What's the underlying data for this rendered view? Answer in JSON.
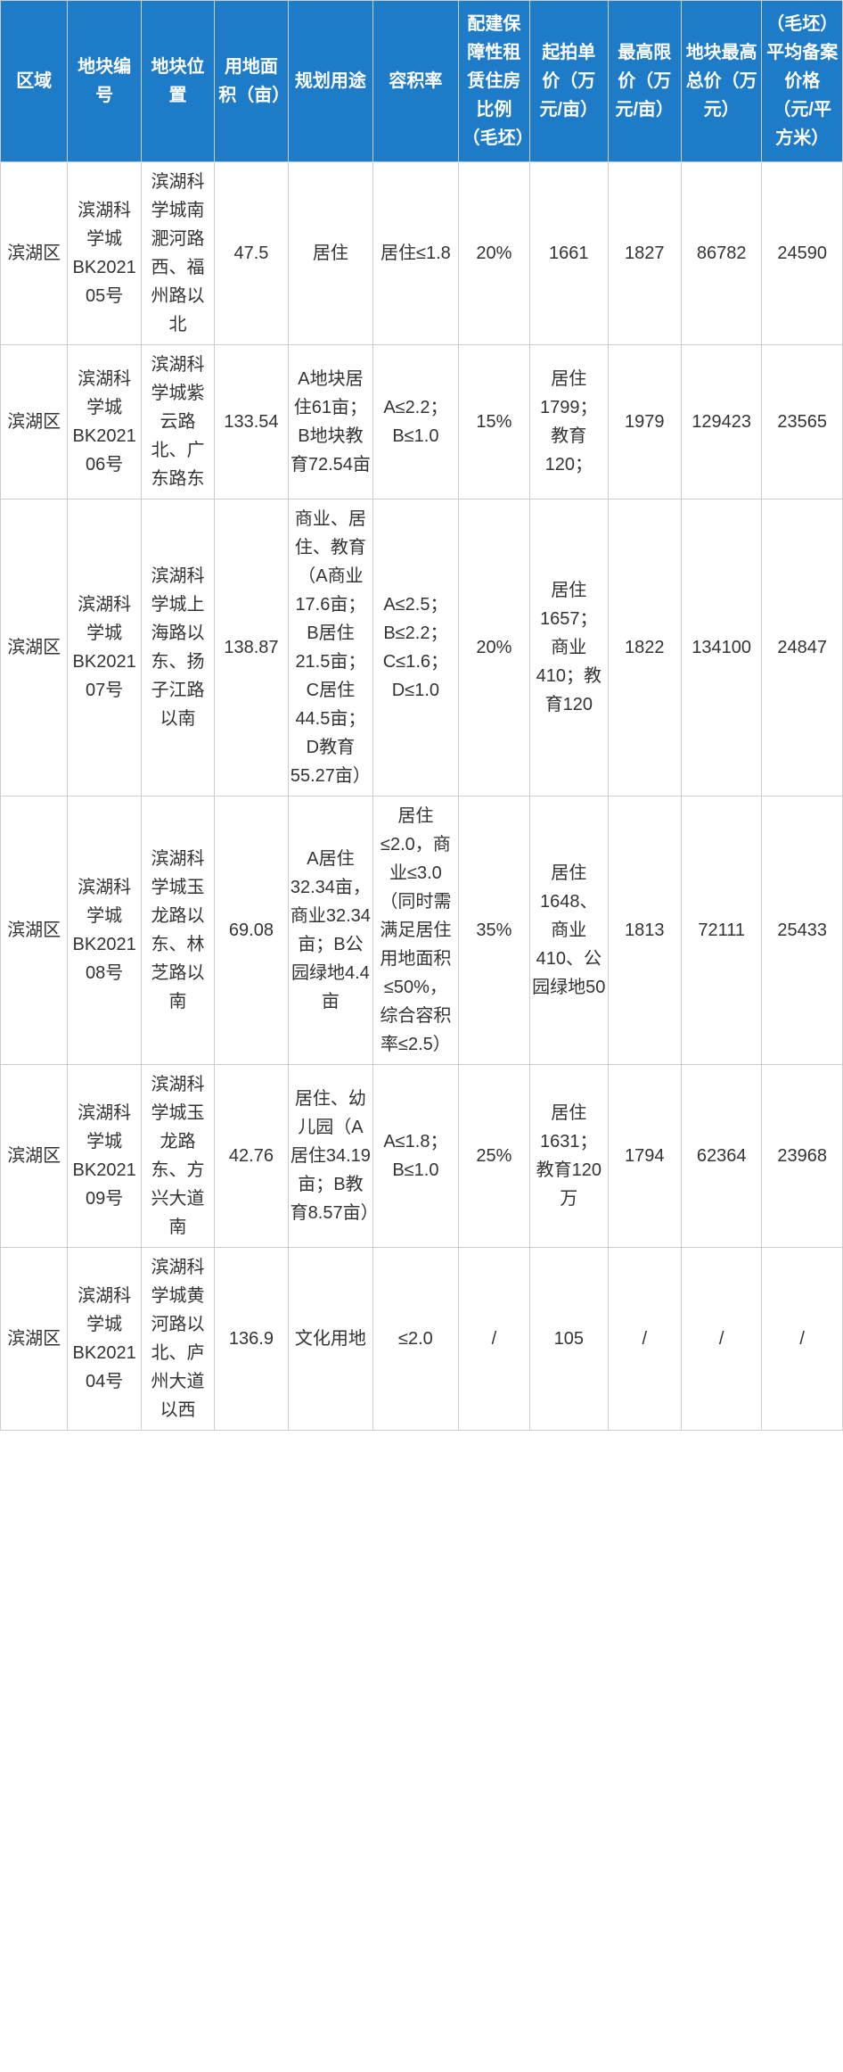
{
  "table": {
    "header_bg": "#1e7bc8",
    "header_fg": "#ffffff",
    "border_color": "#cccccc",
    "cell_bg": "#ffffff",
    "cell_fg": "#333333",
    "font_size_header": 20,
    "font_size_cell": 20,
    "columns": [
      "区域",
      "地块编号",
      "地块位置",
      "用地面积（亩）",
      "规划用途",
      "容积率",
      "配建保障性租赁住房比例（毛坯）",
      "起拍单价（万元/亩）",
      "最高限价（万元/亩）",
      "地块最高总价（万元）",
      "（毛坯）平均备案价格（元/平方米）"
    ],
    "rows": [
      {
        "region": "滨湖区",
        "plot_id": "滨湖科学城BK202105号",
        "location": "滨湖科学城南淝河路西、福州路以北",
        "area_mu": "47.5",
        "use": "居住",
        "far": "居住≤1.8",
        "affordable_pct": "20%",
        "start_price": "1661",
        "max_unit_price": "1827",
        "max_total": "86782",
        "record_price": "24590"
      },
      {
        "region": "滨湖区",
        "plot_id": "滨湖科学城BK202106号",
        "location": "滨湖科学城紫云路北、广东路东",
        "area_mu": "133.54",
        "use": "A地块居住61亩；B地块教育72.54亩",
        "far": "A≤2.2；B≤1.0",
        "affordable_pct": "15%",
        "start_price": "居住1799；教育120；",
        "max_unit_price": "1979",
        "max_total": "129423",
        "record_price": "23565"
      },
      {
        "region": "滨湖区",
        "plot_id": "滨湖科学城BK202107号",
        "location": "滨湖科学城上海路以东、扬子江路以南",
        "area_mu": "138.87",
        "use": "商业、居住、教育（A商业17.6亩；B居住21.5亩；C居住44.5亩；D教育55.27亩）",
        "far": "A≤2.5；B≤2.2；C≤1.6；D≤1.0",
        "affordable_pct": "20%",
        "start_price": "居住1657；商业410；教育120",
        "max_unit_price": "1822",
        "max_total": "134100",
        "record_price": "24847"
      },
      {
        "region": "滨湖区",
        "plot_id": "滨湖科学城BK202108号",
        "location": "滨湖科学城玉龙路以东、林芝路以南",
        "area_mu": "69.08",
        "use": "A居住32.34亩，商业32.34亩；B公园绿地4.4亩",
        "far": "居住≤2.0，商业≤3.0（同时需满足居住用地面积≤50%，综合容积率≤2.5）",
        "affordable_pct": "35%",
        "start_price": "居住1648、商业410、公园绿地50",
        "max_unit_price": "1813",
        "max_total": "72111",
        "record_price": "25433"
      },
      {
        "region": "滨湖区",
        "plot_id": "滨湖科学城BK202109号",
        "location": "滨湖科学城玉龙路东、方兴大道南",
        "area_mu": "42.76",
        "use": "居住、幼儿园（A居住34.19亩；B教育8.57亩）",
        "far": "A≤1.8；B≤1.0",
        "affordable_pct": "25%",
        "start_price": "居住1631；教育120万",
        "max_unit_price": "1794",
        "max_total": "62364",
        "record_price": "23968"
      },
      {
        "region": "滨湖区",
        "plot_id": "滨湖科学城BK202104号",
        "location": "滨湖科学城黄河路以北、庐州大道以西",
        "area_mu": "136.9",
        "use": "文化用地",
        "far": "≤2.0",
        "affordable_pct": "/",
        "start_price": "105",
        "max_unit_price": "/",
        "max_total": "/",
        "record_price": "/"
      }
    ]
  }
}
